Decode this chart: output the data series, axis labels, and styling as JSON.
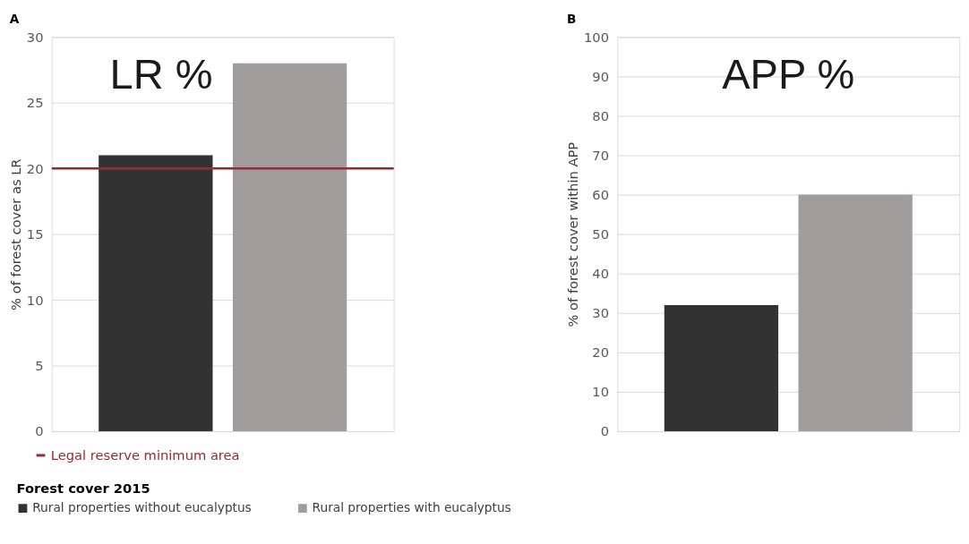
{
  "chart_data": [
    {
      "type": "bar",
      "title": "A",
      "subtitle": "LR %",
      "ylabel": "% of forest cover as LR",
      "categories": [
        null
      ],
      "legend": "bottom",
      "legend_title": "Forest cover 2015",
      "series": [
        {
          "name": "Rural properties without eucalyptus",
          "color": "#323232",
          "values": [
            21
          ]
        },
        {
          "name": "Rural properties with eucalyptus",
          "color": "#a09d9c",
          "values": [
            28
          ]
        }
      ],
      "ylim": [
        0,
        30
      ],
      "yticks": [
        0,
        5,
        10,
        15,
        20,
        25,
        30
      ],
      "grid": "y",
      "tick_labels": "y",
      "ref_lines": [
        {
          "axis": "y",
          "value": 20,
          "label": "Legal reserve minimum area",
          "color": "#9b2a30"
        }
      ]
    },
    {
      "type": "bar",
      "title": "B",
      "subtitle": "APP %",
      "ylabel": "% of forest cover within APP",
      "categories": [
        null
      ],
      "series": [
        {
          "color": "#323232",
          "values": [
            32
          ]
        },
        {
          "color": "#a09d9c",
          "values": [
            60
          ]
        }
      ],
      "ylim": [
        0,
        100
      ],
      "yticks": [
        0,
        10,
        20,
        30,
        40,
        50,
        60,
        70,
        80,
        90,
        100
      ],
      "grid": "y",
      "tick_labels": "y"
    }
  ]
}
